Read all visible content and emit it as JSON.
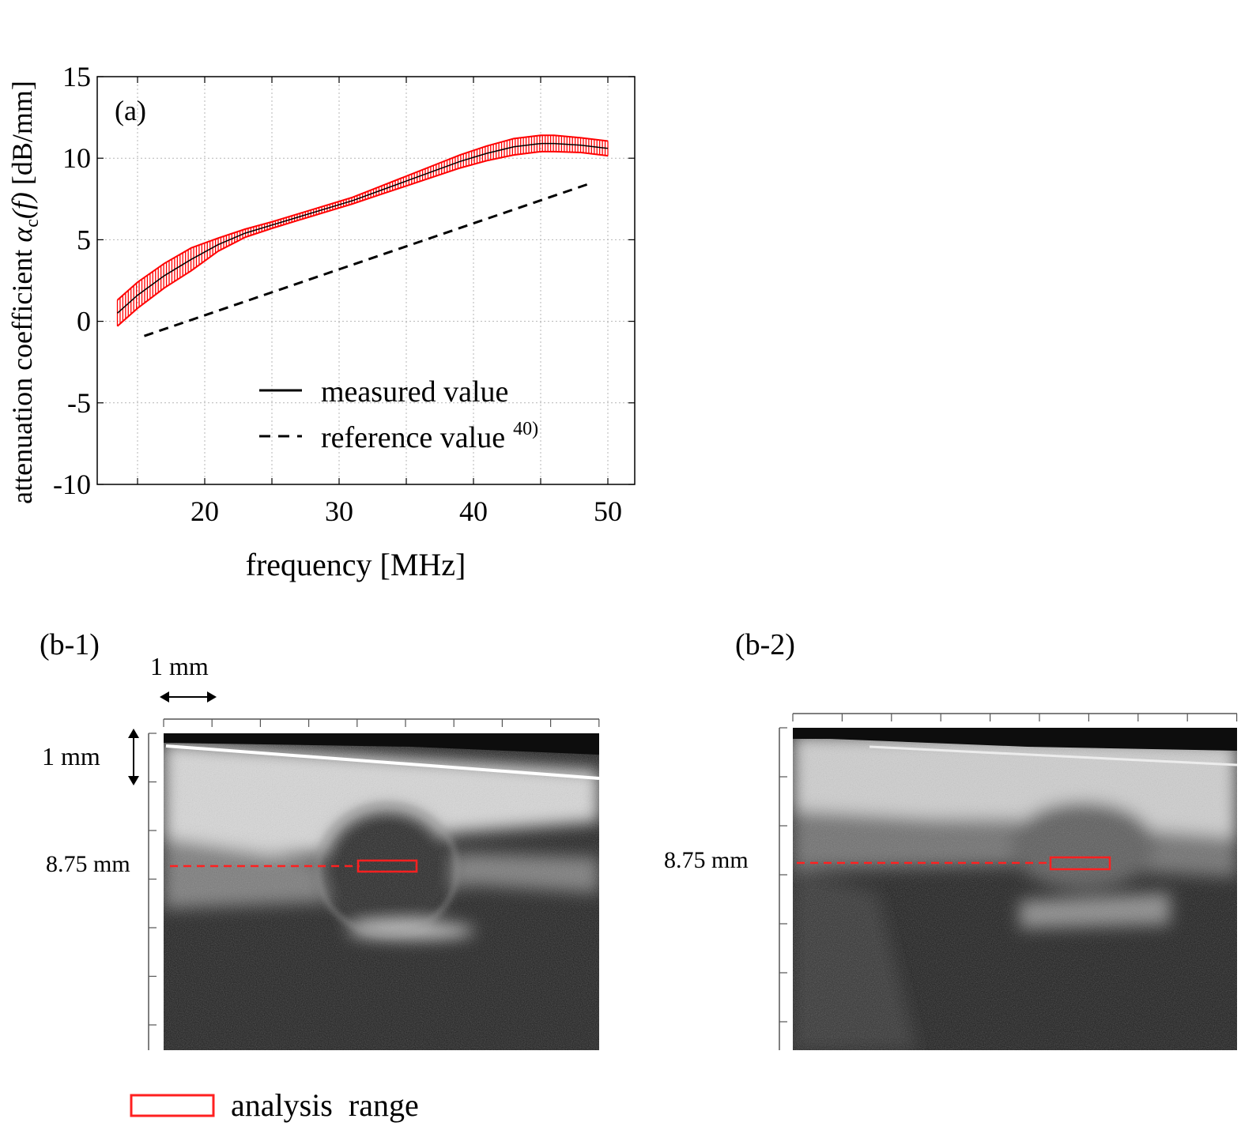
{
  "chart_data": {
    "type": "line",
    "panel_label": "(a)",
    "xlabel": "frequency [MHz]",
    "ylabel_prefix": "attenuation coefficient ",
    "ylabel_symbol": "α",
    "ylabel_sub": "c",
    "ylabel_func": "(f)",
    "ylabel_unit": " [dB/mm]",
    "xlim": [
      12,
      52
    ],
    "ylim": [
      -10,
      15
    ],
    "xticks": [
      20,
      30,
      40,
      50
    ],
    "yticks": [
      15,
      10,
      5,
      0,
      -5,
      -10
    ],
    "xgrid": [
      15,
      20,
      25,
      30,
      35,
      40,
      45,
      50
    ],
    "ygrid": [
      -10,
      -5,
      0,
      5,
      10,
      15
    ],
    "grid": true,
    "legend_placement": "bottom-right",
    "series": [
      {
        "name": "measured value",
        "style": "solid",
        "color": "#000000",
        "errorbar_color": "#ff0000",
        "x": [
          13.5,
          15,
          17,
          19,
          21,
          23,
          25,
          27,
          29,
          31,
          33,
          35,
          37,
          39,
          41,
          43,
          45,
          46,
          48,
          50
        ],
        "y": [
          0.5,
          1.6,
          2.8,
          3.8,
          4.7,
          5.4,
          5.9,
          6.4,
          6.9,
          7.4,
          8.0,
          8.6,
          9.2,
          9.8,
          10.3,
          10.7,
          10.9,
          10.9,
          10.8,
          10.6
        ],
        "err": [
          0.8,
          0.8,
          0.75,
          0.7,
          0.4,
          0.25,
          0.2,
          0.2,
          0.2,
          0.2,
          0.25,
          0.3,
          0.35,
          0.4,
          0.45,
          0.5,
          0.5,
          0.5,
          0.45,
          0.45
        ]
      },
      {
        "name": "reference value",
        "name_sup": "40)",
        "style": "dashed",
        "color": "#000000",
        "x": [
          15.5,
          48.5
        ],
        "y": [
          -0.9,
          8.4
        ]
      }
    ]
  },
  "images": [
    {
      "label": "(b-1)",
      "scale_bar_label": "1 mm",
      "depth_scale_label": "1 mm",
      "depth_label": "8.75 mm"
    },
    {
      "label": "(b-2)",
      "depth_label": "8.75 mm"
    }
  ],
  "legend": {
    "analysis_range_label": "analysis  range"
  },
  "colors": {
    "errorbar": "#ff0000",
    "roi": "#ff0000",
    "depth_line": "#ff0000"
  }
}
